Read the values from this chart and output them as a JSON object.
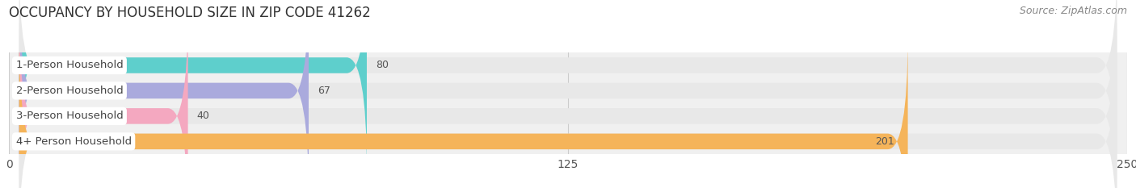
{
  "title": "OCCUPANCY BY HOUSEHOLD SIZE IN ZIP CODE 41262",
  "source": "Source: ZipAtlas.com",
  "categories": [
    "1-Person Household",
    "2-Person Household",
    "3-Person Household",
    "4+ Person Household"
  ],
  "values": [
    80,
    67,
    40,
    201
  ],
  "bar_colors": [
    "#5ecfcc",
    "#aaaadd",
    "#f4a8c0",
    "#f5b45a"
  ],
  "bar_bg_color": "#e8e8e8",
  "xlim": [
    0,
    250
  ],
  "xticks": [
    0,
    125,
    250
  ],
  "title_fontsize": 12,
  "source_fontsize": 9,
  "label_fontsize": 9.5,
  "value_fontsize": 9,
  "background_color": "#ffffff",
  "bar_height": 0.62
}
